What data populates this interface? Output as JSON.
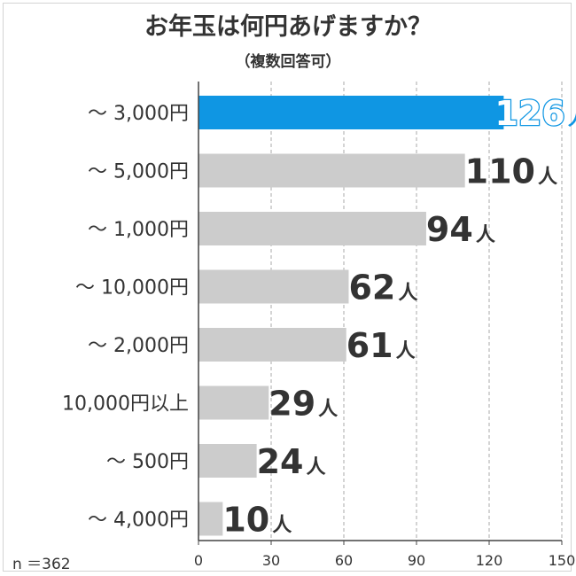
{
  "chart_data": {
    "type": "bar",
    "orientation": "horizontal",
    "title": "お年玉は何円あげますか？",
    "subtitle": "（複数回答可）",
    "categories": [
      "～ 3,000円",
      "～ 5,000円",
      "～ 1,000円",
      "～ 10,000円",
      "～ 2,000円",
      "10,000円以上",
      "～ 500円",
      "～ 4,000円"
    ],
    "values": [
      126,
      110,
      94,
      62,
      61,
      29,
      24,
      10
    ],
    "value_labels": [
      "126",
      "110",
      "94",
      "62",
      "61",
      "29",
      "24",
      "10"
    ],
    "unit": "人",
    "xlim": [
      0,
      150
    ],
    "xticks": [
      "0",
      "30",
      "60",
      "90",
      "120",
      "150"
    ],
    "grid": true,
    "highlight_color": "#0f96e3",
    "bar_color": "#cccccc",
    "sample_size": "n ＝362"
  }
}
